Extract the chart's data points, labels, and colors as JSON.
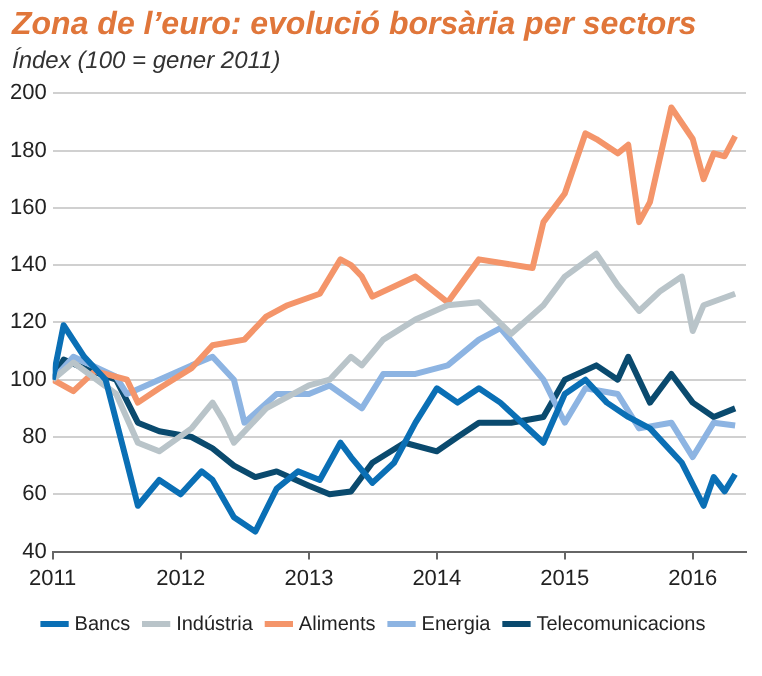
{
  "chart_data": {
    "type": "line",
    "title": "Zona de l’euro: evolució borsària per sectors",
    "subtitle": "Índex (100 = gener 2011)",
    "xlim": [
      "2011-01",
      "2016-06"
    ],
    "xticks": [
      "2011",
      "2012",
      "2013",
      "2014",
      "2015",
      "2016"
    ],
    "ylim": [
      40,
      200
    ],
    "yticks": [
      40,
      60,
      80,
      100,
      120,
      140,
      160,
      180,
      200
    ],
    "grid": "y",
    "legend": "bottom",
    "marker": "none",
    "line_style": "solid",
    "series": [
      {
        "name": "Bancs",
        "color": "#0a6fb5",
        "x": [
          "2011-01",
          "2011-02",
          "2011-04",
          "2011-06",
          "2011-08",
          "2011-09",
          "2011-11",
          "2012-01",
          "2012-03",
          "2012-04",
          "2012-06",
          "2012-08",
          "2012-10",
          "2012-12",
          "2013-02",
          "2013-04",
          "2013-05",
          "2013-07",
          "2013-09",
          "2013-11",
          "2014-01",
          "2014-03",
          "2014-05",
          "2014-07",
          "2014-09",
          "2014-11",
          "2015-01",
          "2015-03",
          "2015-05",
          "2015-07",
          "2015-09",
          "2015-12",
          "2016-02",
          "2016-03",
          "2016-04",
          "2016-05"
        ],
        "values": [
          100,
          119,
          108,
          100,
          71,
          56,
          65,
          60,
          68,
          65,
          52,
          47,
          62,
          68,
          65,
          78,
          73,
          64,
          71,
          85,
          97,
          92,
          97,
          92,
          85,
          78,
          95,
          100,
          92,
          87,
          83,
          71,
          56,
          66,
          61,
          67
        ]
      },
      {
        "name": "Indústria",
        "color": "#b9c4c9",
        "x": [
          "2011-01",
          "2011-03",
          "2011-07",
          "2011-09",
          "2011-11",
          "2012-02",
          "2012-04",
          "2012-05",
          "2012-06",
          "2012-09",
          "2013-01",
          "2013-03",
          "2013-05",
          "2013-06",
          "2013-08",
          "2013-11",
          "2014-02",
          "2014-05",
          "2014-08",
          "2014-11",
          "2015-01",
          "2015-04",
          "2015-06",
          "2015-08",
          "2015-10",
          "2015-12",
          "2016-01",
          "2016-02",
          "2016-05"
        ],
        "values": [
          100,
          106,
          95,
          78,
          75,
          83,
          92,
          86,
          78,
          90,
          98,
          100,
          108,
          105,
          114,
          121,
          126,
          127,
          116,
          126,
          136,
          144,
          133,
          124,
          131,
          136,
          117,
          126,
          130
        ]
      },
      {
        "name": "Aliments",
        "color": "#f4956a",
        "x": [
          "2011-01",
          "2011-03",
          "2011-05",
          "2011-08",
          "2011-09",
          "2011-11",
          "2012-02",
          "2012-04",
          "2012-07",
          "2012-09",
          "2012-11",
          "2013-02",
          "2013-04",
          "2013-05",
          "2013-06",
          "2013-07",
          "2013-11",
          "2014-02",
          "2014-05",
          "2014-10",
          "2014-11",
          "2015-01",
          "2015-03",
          "2015-04",
          "2015-06",
          "2015-07",
          "2015-08",
          "2015-09",
          "2015-11",
          "2016-01",
          "2016-02",
          "2016-03",
          "2016-04",
          "2016-05"
        ],
        "values": [
          100,
          96,
          103,
          100,
          92,
          97,
          104,
          112,
          114,
          122,
          126,
          130,
          142,
          140,
          136,
          129,
          136,
          127,
          142,
          139,
          155,
          165,
          186,
          184,
          179,
          182,
          155,
          162,
          195,
          184,
          170,
          179,
          178,
          185
        ]
      },
      {
        "name": "Energia",
        "color": "#8db4e2",
        "x": [
          "2011-01",
          "2011-03",
          "2011-07",
          "2011-08",
          "2011-11",
          "2012-02",
          "2012-04",
          "2012-06",
          "2012-07",
          "2012-10",
          "2013-01",
          "2013-03",
          "2013-06",
          "2013-08",
          "2013-11",
          "2014-02",
          "2014-05",
          "2014-07",
          "2014-09",
          "2014-11",
          "2015-01",
          "2015-03",
          "2015-06",
          "2015-08",
          "2015-11",
          "2016-01",
          "2016-03",
          "2016-05"
        ],
        "values": [
          100,
          108,
          101,
          95,
          100,
          105,
          108,
          100,
          85,
          95,
          95,
          98,
          90,
          102,
          102,
          105,
          114,
          118,
          109,
          100,
          85,
          97,
          95,
          83,
          85,
          73,
          85,
          84
        ]
      },
      {
        "name": "Telecomunicacions",
        "color": "#0a4a6e",
        "x": [
          "2011-01",
          "2011-02",
          "2011-04",
          "2011-07",
          "2011-09",
          "2011-11",
          "2012-02",
          "2012-04",
          "2012-06",
          "2012-08",
          "2012-10",
          "2013-01",
          "2013-03",
          "2013-05",
          "2013-07",
          "2013-10",
          "2014-01",
          "2014-03",
          "2014-05",
          "2014-08",
          "2014-11",
          "2015-01",
          "2015-04",
          "2015-06",
          "2015-07",
          "2015-09",
          "2015-11",
          "2016-01",
          "2016-03",
          "2016-05"
        ],
        "values": [
          100,
          107,
          104,
          100,
          85,
          82,
          80,
          76,
          70,
          66,
          68,
          63,
          60,
          61,
          71,
          78,
          75,
          80,
          85,
          85,
          87,
          100,
          105,
          100,
          108,
          92,
          102,
          92,
          87,
          90
        ]
      }
    ]
  }
}
